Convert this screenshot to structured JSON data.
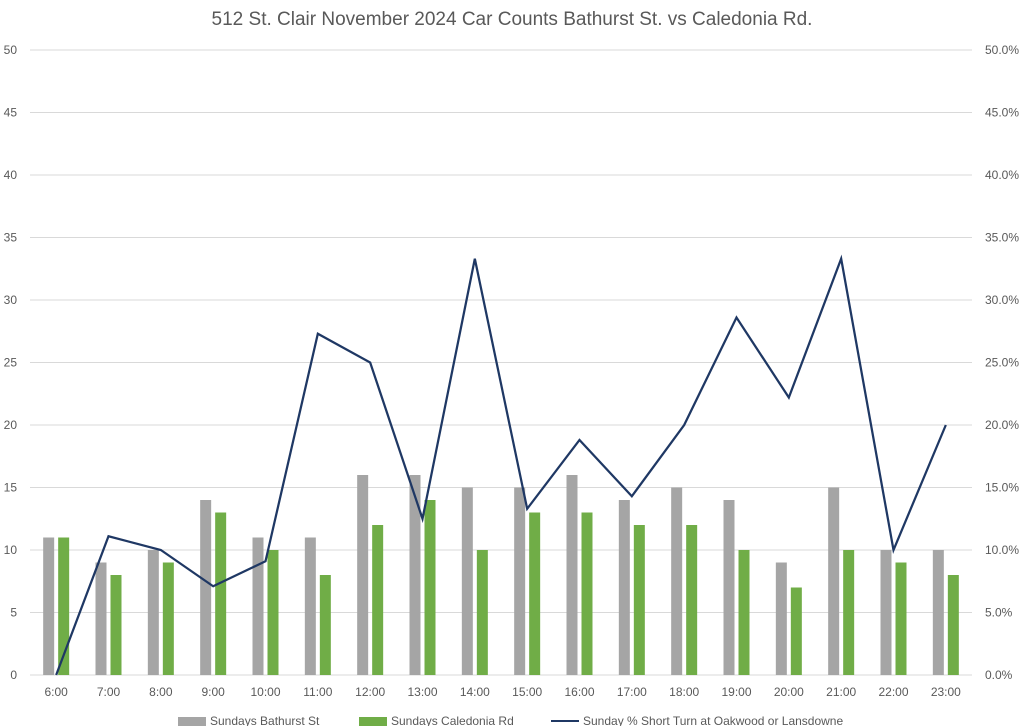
{
  "chart_data": {
    "type": "bar",
    "title": "512 St. Clair November 2024 Car Counts Bathurst St. vs Caledonia Rd.",
    "categories": [
      "6:00",
      "7:00",
      "8:00",
      "9:00",
      "10:00",
      "11:00",
      "12:00",
      "13:00",
      "14:00",
      "15:00",
      "16:00",
      "17:00",
      "18:00",
      "19:00",
      "20:00",
      "21:00",
      "22:00",
      "23:00"
    ],
    "series": [
      {
        "name": "Sundays Bathurst St",
        "type": "bar",
        "axis": "left",
        "color": "#a5a5a5",
        "values": [
          11,
          9,
          10,
          14,
          11,
          11,
          16,
          16,
          15,
          15,
          16,
          14,
          15,
          14,
          9,
          15,
          10,
          10
        ]
      },
      {
        "name": "Sundays Caledonia Rd",
        "type": "bar",
        "axis": "left",
        "color": "#70ad47",
        "values": [
          11,
          8,
          9,
          13,
          10,
          8,
          12,
          14,
          10,
          13,
          13,
          12,
          12,
          10,
          7,
          10,
          9,
          8
        ]
      },
      {
        "name": "Sunday % Short Turn at Oakwood or Lansdowne",
        "type": "line",
        "axis": "right",
        "color": "#1f3864",
        "values": [
          0.0,
          11.1,
          10.0,
          7.1,
          9.1,
          27.3,
          25.0,
          12.5,
          33.3,
          13.3,
          18.8,
          14.3,
          20.0,
          28.6,
          22.2,
          33.3,
          10.0,
          20.0
        ]
      }
    ],
    "y_left": {
      "min": 0,
      "max": 50,
      "step": 5,
      "ticks": [
        "0",
        "5",
        "10",
        "15",
        "20",
        "25",
        "30",
        "35",
        "40",
        "45",
        "50"
      ]
    },
    "y_right": {
      "min": 0,
      "max": 50,
      "step": 5,
      "ticks": [
        "0.0%",
        "5.0%",
        "10.0%",
        "15.0%",
        "20.0%",
        "25.0%",
        "30.0%",
        "35.0%",
        "40.0%",
        "45.0%",
        "50.0%"
      ]
    },
    "grid": true,
    "legend_position": "bottom"
  }
}
